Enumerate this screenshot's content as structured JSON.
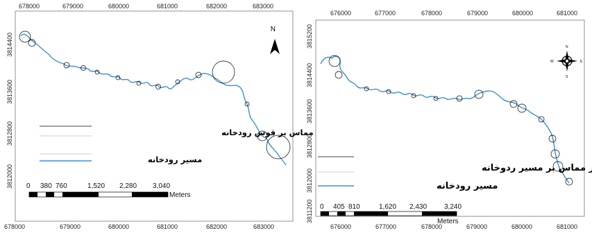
{
  "maps": [
    {
      "top_axis_labels": [
        "678000",
        "679000",
        "680000",
        "681000",
        "682000",
        "683000"
      ],
      "bottom_axis_labels": [
        "678000",
        "679000",
        "680000",
        "681000",
        "682000",
        "683000"
      ],
      "left_axis_labels": [
        "3814400",
        "3813600",
        "3812800",
        "3812000"
      ],
      "legend": {
        "circles_label": "دوایر مماس بر قوس رودخانه",
        "river_label": "مسیر رودخانه"
      },
      "scale_bar": {
        "labels": [
          "0",
          "380",
          "760",
          "1,520",
          "2,280",
          "3,040"
        ],
        "unit": "Meters"
      },
      "north_arrow_label": "N"
    },
    {
      "top_axis_labels": [
        "676000",
        "677000",
        "678000",
        "679000",
        "680000",
        "681000"
      ],
      "bottom_axis_labels": [
        "676000",
        "677000",
        "678000",
        "679000",
        "680000",
        "681000"
      ],
      "left_axis_labels": [
        "3815200",
        "3814400",
        "3813600",
        "3812800",
        "3812000",
        "3811200"
      ],
      "legend": {
        "circles_label": "دوایر مماس بر مسیر ردوخانه",
        "river_label": "مسیر رودخانه"
      },
      "scale_bar": {
        "labels": [
          "0",
          "405",
          "810",
          "1,620",
          "2,430",
          "3,240"
        ],
        "unit": "Meters"
      },
      "compass": {
        "n": "N",
        "e": "E",
        "s": "S",
        "w": "W"
      }
    }
  ],
  "colors": {
    "river": "#3a8fd0",
    "circles": "#000000",
    "frame": "#666666"
  }
}
